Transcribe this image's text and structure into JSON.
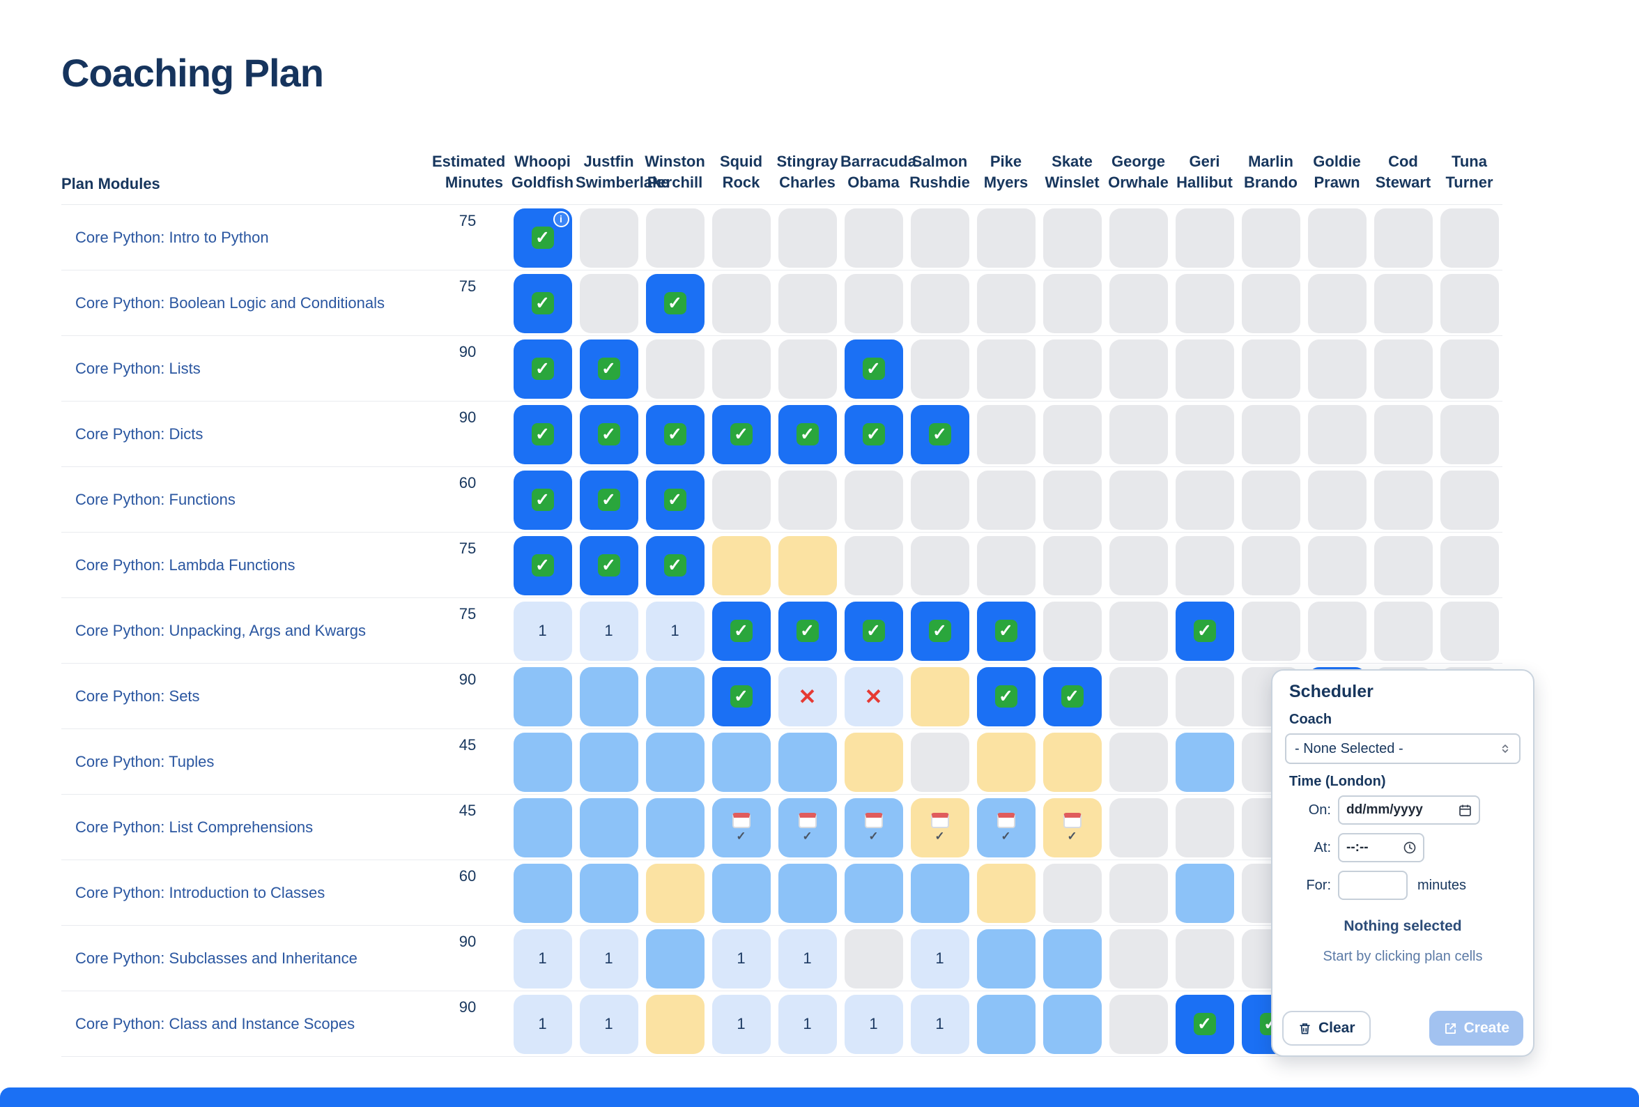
{
  "page": {
    "title": "Coaching Plan"
  },
  "table": {
    "modules_header": "Plan Modules",
    "minutes_header": [
      "Estimated",
      "Minutes"
    ],
    "cell_number_label": "1",
    "coaches": [
      {
        "first": "Whoopi",
        "last": "Goldfish"
      },
      {
        "first": "Justfin",
        "last": "Swimberlake"
      },
      {
        "first": "Winston",
        "last": "Perchill"
      },
      {
        "first": "Squid",
        "last": "Rock"
      },
      {
        "first": "Stingray",
        "last": "Charles"
      },
      {
        "first": "Barracuda",
        "last": "Obama"
      },
      {
        "first": "Salmon",
        "last": "Rushdie"
      },
      {
        "first": "Pike",
        "last": "Myers"
      },
      {
        "first": "Skate",
        "last": "Winslet"
      },
      {
        "first": "George",
        "last": "Orwhale"
      },
      {
        "first": "Geri",
        "last": "Hallibut"
      },
      {
        "first": "Marlin",
        "last": "Brando"
      },
      {
        "first": "Goldie",
        "last": "Prawn"
      },
      {
        "first": "Cod",
        "last": "Stewart"
      },
      {
        "first": "Tuna",
        "last": "Turner"
      }
    ],
    "rows": [
      {
        "module": "Core Python: Intro to Python",
        "minutes": 75,
        "cells": [
          "done_info",
          "empty",
          "empty",
          "empty",
          "empty",
          "empty",
          "empty",
          "empty",
          "empty",
          "empty",
          "empty",
          "empty",
          "empty",
          "empty",
          "empty"
        ]
      },
      {
        "module": "Core Python: Boolean Logic and Conditionals",
        "minutes": 75,
        "cells": [
          "done",
          "empty",
          "done",
          "empty",
          "empty",
          "empty",
          "empty",
          "empty",
          "empty",
          "empty",
          "empty",
          "empty",
          "empty",
          "empty",
          "empty"
        ]
      },
      {
        "module": "Core Python: Lists",
        "minutes": 90,
        "cells": [
          "done",
          "done",
          "empty",
          "empty",
          "empty",
          "done",
          "empty",
          "empty",
          "empty",
          "empty",
          "empty",
          "empty",
          "empty",
          "empty",
          "empty"
        ]
      },
      {
        "module": "Core Python: Dicts",
        "minutes": 90,
        "cells": [
          "done",
          "done",
          "done",
          "done",
          "done",
          "done",
          "done",
          "empty",
          "empty",
          "empty",
          "empty",
          "empty",
          "empty",
          "empty",
          "empty"
        ]
      },
      {
        "module": "Core Python: Functions",
        "minutes": 60,
        "cells": [
          "done",
          "done",
          "done",
          "empty",
          "empty",
          "empty",
          "empty",
          "empty",
          "empty",
          "empty",
          "empty",
          "empty",
          "empty",
          "empty",
          "empty"
        ]
      },
      {
        "module": "Core Python: Lambda Functions",
        "minutes": 75,
        "cells": [
          "done",
          "done",
          "done",
          "yellow",
          "yellow",
          "empty",
          "empty",
          "empty",
          "empty",
          "empty",
          "empty",
          "empty",
          "empty",
          "empty",
          "empty"
        ]
      },
      {
        "module": "Core Python: Unpacking, Args and Kwargs",
        "minutes": 75,
        "cells": [
          "one",
          "one",
          "one",
          "done",
          "done",
          "done",
          "done",
          "done",
          "empty",
          "empty",
          "done",
          "empty",
          "empty",
          "empty",
          "empty"
        ]
      },
      {
        "module": "Core Python: Sets",
        "minutes": 90,
        "cells": [
          "sched",
          "sched",
          "sched",
          "done",
          "missed",
          "missed",
          "yellow",
          "done",
          "done",
          "empty",
          "empty",
          "empty",
          "done",
          "empty",
          "empty"
        ]
      },
      {
        "module": "Core Python: Tuples",
        "minutes": 45,
        "cells": [
          "sched",
          "sched",
          "sched",
          "sched",
          "sched",
          "yellow",
          "empty",
          "yellow",
          "yellow",
          "empty",
          "sched",
          "empty",
          "empty",
          "empty",
          "empty"
        ]
      },
      {
        "module": "Core Python: List Comprehensions",
        "minutes": 45,
        "cells": [
          "sched",
          "sched",
          "sched",
          "cal_blue",
          "cal_blue",
          "cal_blue",
          "cal_yellow",
          "cal_blue",
          "cal_yellow",
          "empty",
          "empty",
          "empty",
          "empty",
          "empty",
          "empty"
        ]
      },
      {
        "module": "Core Python: Introduction to Classes",
        "minutes": 60,
        "cells": [
          "sched",
          "sched",
          "yellow",
          "sched",
          "sched",
          "sched",
          "sched",
          "yellow",
          "empty",
          "empty",
          "sched",
          "empty",
          "empty",
          "empty",
          "empty"
        ]
      },
      {
        "module": "Core Python: Subclasses and Inheritance",
        "minutes": 90,
        "cells": [
          "one",
          "one",
          "sched",
          "one",
          "one",
          "empty",
          "one",
          "sched",
          "sched",
          "empty",
          "empty",
          "empty",
          "empty",
          "empty",
          "empty"
        ]
      },
      {
        "module": "Core Python: Class and Instance Scopes",
        "minutes": 90,
        "cells": [
          "one",
          "one",
          "yellow",
          "one",
          "one",
          "one",
          "one",
          "sched",
          "sched",
          "empty",
          "done",
          "done",
          "empty",
          "empty",
          "empty"
        ]
      }
    ]
  },
  "scheduler": {
    "title": "Scheduler",
    "coach_label": "Coach",
    "coach_value": "- None Selected -",
    "time_label": "Time (London)",
    "on_label": "On:",
    "date_placeholder": "dd/mm/yyyy",
    "at_label": "At:",
    "time_placeholder": "--:--",
    "for_label": "For:",
    "minutes_suffix": "minutes",
    "empty_title": "Nothing selected",
    "empty_hint": "Start by clicking plan cells",
    "clear_label": "Clear",
    "create_label": "Create"
  },
  "colors": {
    "accent_blue": "#1b70f4",
    "scheduled_blue": "#8cc2f8",
    "pale_blue": "#d9e7fb",
    "pending_yellow": "#fbe2a2",
    "empty_gray": "#e7e8eb",
    "check_green": "#2aa63c",
    "missed_red": "#e63a33",
    "heading_navy": "#17365d"
  }
}
